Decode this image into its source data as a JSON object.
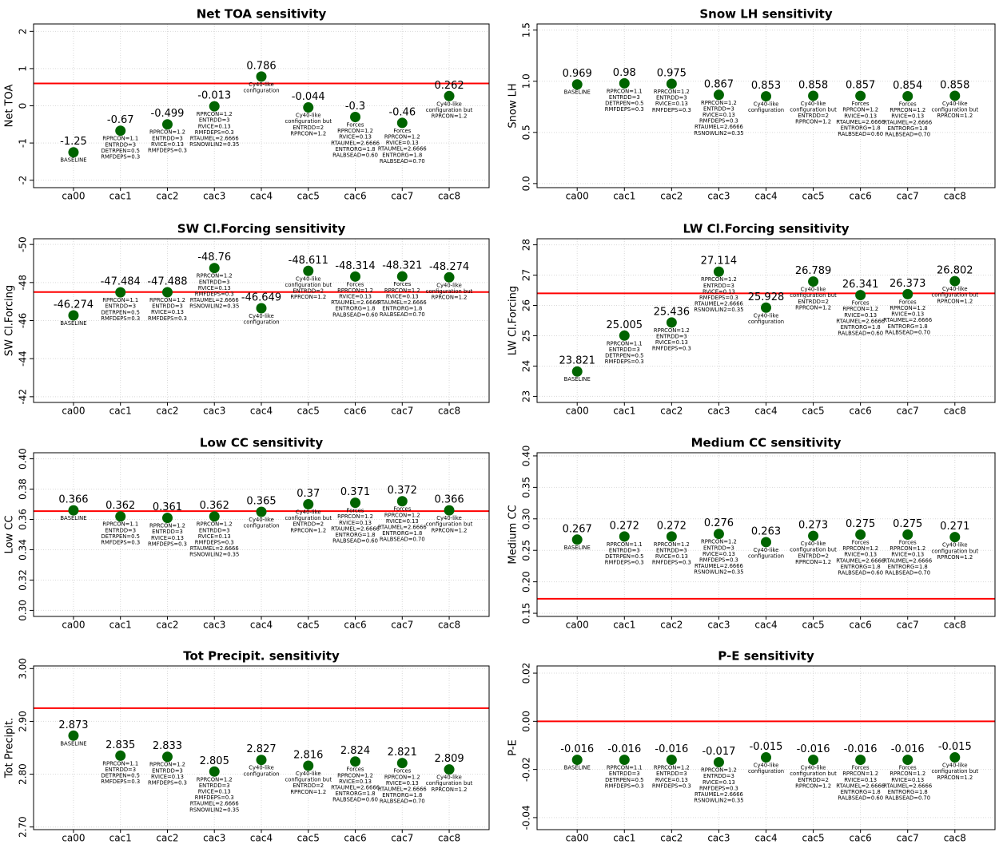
{
  "chart_data": [
    {
      "type": "point",
      "title": "Net TOA sensitivity",
      "y_label": "Net TOA",
      "categories": [
        "ca00",
        "cac1",
        "cac2",
        "cac3",
        "cac4",
        "cac5",
        "cac6",
        "cac7",
        "cac8"
      ],
      "values": [
        -1.25,
        -0.67,
        -0.499,
        -0.013,
        0.786,
        -0.044,
        -0.3,
        -0.46,
        0.262
      ],
      "annotations": [
        [
          "BASELINE"
        ],
        [
          "RPRCON=1.1",
          "ENTRDD=3",
          "DETRPEN=0.5",
          "RMFDEPS=0.3"
        ],
        [
          "RPRCON=1.2",
          "ENTRDD=3",
          "RVICE=0.13",
          "RMFDEPS=0.3"
        ],
        [
          "RPRCON=1.2",
          "ENTRDD=3",
          "RVICE=0.13",
          "RMFDEPS=0.3",
          "RTAUMEL=2.6666",
          "RSNOWLIN2=0.35"
        ],
        [
          "Cy40-like",
          "configuration"
        ],
        [
          "Cy40-like",
          "configuration but",
          "ENTRDD=2",
          "RPRCON=1.2"
        ],
        [
          "Forces",
          "RPRCON=1.2",
          "RVICE=0.13",
          "RTAUMEL=2.6666",
          "ENTRORG=1.8",
          "RALBSEAD=0.60"
        ],
        [
          "Forces",
          "RPRCON=1.2",
          "RVICE=0.13",
          "RTAUMEL=2.6666",
          "ENTRORG=1.8",
          "RALBSEAD=0.70"
        ],
        [
          "Cy40-like",
          "configuration but",
          "RPRCON=1.2"
        ]
      ],
      "ylim": [
        -2.2,
        2.2
      ],
      "yticks": [
        -2,
        -1,
        0,
        1,
        2
      ],
      "grid": true,
      "color": "#006400",
      "reference_line": {
        "value": 0.6,
        "color": "#ff0000"
      }
    },
    {
      "type": "point",
      "title": "Snow LH sensitivity",
      "y_label": "Snow LH",
      "categories": [
        "ca00",
        "cac1",
        "cac2",
        "cac3",
        "cac4",
        "cac5",
        "cac6",
        "cac7",
        "cac8"
      ],
      "values": [
        0.969,
        0.98,
        0.975,
        0.867,
        0.853,
        0.858,
        0.857,
        0.854,
        0.858
      ],
      "annotations": [
        [
          "BASELINE"
        ],
        [
          "RPRCON=1.1",
          "ENTRDD=3",
          "DETRPEN=0.5",
          "RMFDEPS=0.3"
        ],
        [
          "RPRCON=1.2",
          "ENTRDD=3",
          "RVICE=0.13",
          "RMFDEPS=0.3"
        ],
        [
          "RPRCON=1.2",
          "ENTRDD=3",
          "RVICE=0.13",
          "RMFDEPS=0.3",
          "RTAUMEL=2.6666",
          "RSNOWLIN2=0.35"
        ],
        [
          "Cy40-like",
          "configuration"
        ],
        [
          "Cy40-like",
          "configuration but",
          "ENTRDD=2",
          "RPRCON=1.2"
        ],
        [
          "Forces",
          "RPRCON=1.2",
          "RVICE=0.13",
          "RTAUMEL=2.6666",
          "ENTRORG=1.8",
          "RALBSEAD=0.60"
        ],
        [
          "Forces",
          "RPRCON=1.2",
          "RVICE=0.13",
          "RTAUMEL=2.6666",
          "ENTRORG=1.8",
          "RALBSEAD=0.70"
        ],
        [
          "Cy40-like",
          "configuration but",
          "RPRCON=1.2"
        ]
      ],
      "ylim": [
        -0.04,
        1.56
      ],
      "yticks": [
        {
          "value": 0,
          "label": "0.0"
        },
        0.5,
        {
          "value": 1,
          "label": "1.0"
        },
        1.5
      ],
      "grid": true,
      "color": "#006400"
    },
    {
      "type": "point",
      "title": "SW Cl.Forcing sensitivity",
      "y_label": "SW Cl.Forcing",
      "categories": [
        "ca00",
        "cac1",
        "cac2",
        "cac3",
        "cac4",
        "cac5",
        "cac6",
        "cac7",
        "cac8"
      ],
      "values": [
        -46.274,
        -47.484,
        -47.488,
        -48.76,
        -46.649,
        -48.611,
        -48.314,
        -48.321,
        -48.274
      ],
      "annotations": [
        [
          "BASELINE"
        ],
        [
          "RPRCON=1.1",
          "ENTRDD=3",
          "DETRPEN=0.5",
          "RMFDEPS=0.3"
        ],
        [
          "RPRCON=1.2",
          "ENTRDD=3",
          "RVICE=0.13",
          "RMFDEPS=0.3"
        ],
        [
          "RPRCON=1.2",
          "ENTRDD=3",
          "RVICE=0.13",
          "RMFDEPS=0.3",
          "RTAUMEL=2.6666",
          "RSNOWLIN2=0.35"
        ],
        [
          "Cy40-like",
          "configuration"
        ],
        [
          "Cy40-like",
          "configuration but",
          "ENTRDD=2",
          "RPRCON=1.2"
        ],
        [
          "Forces",
          "RPRCON=1.2",
          "RVICE=0.13",
          "RTAUMEL=2.6666",
          "ENTRORG=1.8",
          "RALBSEAD=0.60"
        ],
        [
          "Forces",
          "RPRCON=1.2",
          "RVICE=0.13",
          "RTAUMEL=2.6666",
          "ENTRORG=1.8",
          "RALBSEAD=0.70"
        ],
        [
          "Cy40-like",
          "configuration but",
          "RPRCON=1.2"
        ]
      ],
      "ylim": [
        -41.7,
        -50.3
      ],
      "yticks": [
        -50,
        -48,
        -46,
        -44,
        -42
      ],
      "grid": true,
      "color": "#006400",
      "reference_line": {
        "value": -47.5,
        "color": "#ff0000"
      }
    },
    {
      "type": "point",
      "title": "LW Cl.Forcing sensitivity",
      "y_label": "LW Cl.Forcing",
      "categories": [
        "ca00",
        "cac1",
        "cac2",
        "cac3",
        "cac4",
        "cac5",
        "cac6",
        "cac7",
        "cac8"
      ],
      "values": [
        23.821,
        25.005,
        25.436,
        27.114,
        25.928,
        26.789,
        26.341,
        26.373,
        26.802
      ],
      "annotations": [
        [
          "BASELINE"
        ],
        [
          "RPRCON=1.1",
          "ENTRDD=3",
          "DETRPEN=0.5",
          "RMFDEPS=0.3"
        ],
        [
          "RPRCON=1.2",
          "ENTRDD=3",
          "RVICE=0.13",
          "RMFDEPS=0.3"
        ],
        [
          "RPRCON=1.2",
          "ENTRDD=3",
          "RVICE=0.13",
          "RMFDEPS=0.3",
          "RTAUMEL=2.6666",
          "RSNOWLIN2=0.35"
        ],
        [
          "Cy40-like",
          "configuration"
        ],
        [
          "Cy40-like",
          "configuration but",
          "ENTRDD=2",
          "RPRCON=1.2"
        ],
        [
          "Forces",
          "RPRCON=1.2",
          "RVICE=0.13",
          "RTAUMEL=2.6666",
          "ENTRORG=1.8",
          "RALBSEAD=0.60"
        ],
        [
          "Forces",
          "RPRCON=1.2",
          "RVICE=0.13",
          "RTAUMEL=2.6666",
          "ENTRORG=1.8",
          "RALBSEAD=0.70"
        ],
        [
          "Cy40-like",
          "configuration but",
          "RPRCON=1.2"
        ]
      ],
      "ylim": [
        22.8,
        28.2
      ],
      "yticks": [
        23,
        24,
        25,
        26,
        27,
        28
      ],
      "grid": true,
      "color": "#006400",
      "reference_line": {
        "value": 26.4,
        "color": "#ff0000"
      }
    },
    {
      "type": "point",
      "title": "Low CC sensitivity",
      "y_label": "Low CC",
      "categories": [
        "ca00",
        "cac1",
        "cac2",
        "cac3",
        "cac4",
        "cac5",
        "cac6",
        "cac7",
        "cac8"
      ],
      "values": [
        0.366,
        0.362,
        0.361,
        0.362,
        0.365,
        0.37,
        0.371,
        0.372,
        0.366
      ],
      "annotations": [
        [
          "BASELINE"
        ],
        [
          "RPRCON=1.1",
          "ENTRDD=3",
          "DETRPEN=0.5",
          "RMFDEPS=0.3"
        ],
        [
          "RPRCON=1.2",
          "ENTRDD=3",
          "RVICE=0.13",
          "RMFDEPS=0.3"
        ],
        [
          "RPRCON=1.2",
          "ENTRDD=3",
          "RVICE=0.13",
          "RMFDEPS=0.3",
          "RTAUMEL=2.6666",
          "RSNOWLIN2=0.35"
        ],
        [
          "Cy40-like",
          "configuration"
        ],
        [
          "Cy40-like",
          "configuration but",
          "ENTRDD=2",
          "RPRCON=1.2"
        ],
        [
          "Forces",
          "RPRCON=1.2",
          "RVICE=0.13",
          "RTAUMEL=2.6666",
          "ENTRORG=1.8",
          "RALBSEAD=0.60"
        ],
        [
          "Forces",
          "RPRCON=1.2",
          "RVICE=0.13",
          "RTAUMEL=2.6666",
          "ENTRORG=1.8",
          "RALBSEAD=0.70"
        ],
        [
          "Cy40-like",
          "configuration but",
          "RPRCON=1.2"
        ]
      ],
      "ylim": [
        0.296,
        0.404
      ],
      "yticks": [
        {
          "value": 0.3,
          "label": "0.30"
        },
        0.32,
        0.34,
        0.36,
        0.38,
        {
          "value": 0.4,
          "label": "0.40"
        }
      ],
      "grid": true,
      "color": "#006400",
      "reference_line": {
        "value": 0.3655,
        "color": "#ff0000"
      }
    },
    {
      "type": "point",
      "title": "Medium CC sensitivity",
      "y_label": "Medium CC",
      "categories": [
        "ca00",
        "cac1",
        "cac2",
        "cac3",
        "cac4",
        "cac5",
        "cac6",
        "cac7",
        "cac8"
      ],
      "values": [
        0.267,
        0.272,
        0.272,
        0.276,
        0.263,
        0.273,
        0.275,
        0.275,
        0.271
      ],
      "annotations": [
        [
          "BASELINE"
        ],
        [
          "RPRCON=1.1",
          "ENTRDD=3",
          "DETRPEN=0.5",
          "RMFDEPS=0.3"
        ],
        [
          "RPRCON=1.2",
          "ENTRDD=3",
          "RVICE=0.13",
          "RMFDEPS=0.3"
        ],
        [
          "RPRCON=1.2",
          "ENTRDD=3",
          "RVICE=0.13",
          "RMFDEPS=0.3",
          "RTAUMEL=2.6666",
          "RSNOWLIN2=0.35"
        ],
        [
          "Cy40-like",
          "configuration"
        ],
        [
          "Cy40-like",
          "configuration but",
          "ENTRDD=2",
          "RPRCON=1.2"
        ],
        [
          "Forces",
          "RPRCON=1.2",
          "RVICE=0.13",
          "RTAUMEL=2.6666",
          "ENTRORG=1.8",
          "RALBSEAD=0.60"
        ],
        [
          "Forces",
          "RPRCON=1.2",
          "RVICE=0.13",
          "RTAUMEL=2.6666",
          "ENTRORG=1.8",
          "RALBSEAD=0.70"
        ],
        [
          "Cy40-like",
          "configuration but",
          "RPRCON=1.2"
        ]
      ],
      "ylim": [
        0.145,
        0.405
      ],
      "yticks": [
        0.15,
        {
          "value": 0.2,
          "label": "0.20"
        },
        0.25,
        {
          "value": 0.3,
          "label": "0.30"
        },
        0.35,
        {
          "value": 0.4,
          "label": "0.40"
        }
      ],
      "grid": true,
      "color": "#006400",
      "reference_line": {
        "value": 0.173,
        "color": "#ff0000"
      }
    },
    {
      "type": "point",
      "title": "Tot Precipit. sensitivity",
      "y_label": "Tot Precipit.",
      "categories": [
        "ca00",
        "cac1",
        "cac2",
        "cac3",
        "cac4",
        "cac5",
        "cac6",
        "cac7",
        "cac8"
      ],
      "values": [
        2.873,
        2.835,
        2.833,
        2.805,
        2.827,
        2.816,
        2.824,
        2.821,
        2.809
      ],
      "annotations": [
        [
          "BASELINE"
        ],
        [
          "RPRCON=1.1",
          "ENTRDD=3",
          "DETRPEN=0.5",
          "RMFDEPS=0.3"
        ],
        [
          "RPRCON=1.2",
          "ENTRDD=3",
          "RVICE=0.13",
          "RMFDEPS=0.3"
        ],
        [
          "RPRCON=1.2",
          "ENTRDD=3",
          "RVICE=0.13",
          "RMFDEPS=0.3",
          "RTAUMEL=2.6666",
          "RSNOWLIN2=0.35"
        ],
        [
          "Cy40-like",
          "configuration"
        ],
        [
          "Cy40-like",
          "configuration but",
          "ENTRDD=2",
          "RPRCON=1.2"
        ],
        [
          "Forces",
          "RPRCON=1.2",
          "RVICE=0.13",
          "RTAUMEL=2.6666",
          "ENTRORG=1.8",
          "RALBSEAD=0.60"
        ],
        [
          "Forces",
          "RPRCON=1.2",
          "RVICE=0.13",
          "RTAUMEL=2.6666",
          "ENTRORG=1.8",
          "RALBSEAD=0.70"
        ],
        [
          "Cy40-like",
          "configuration but",
          "RPRCON=1.2"
        ]
      ],
      "ylim": [
        2.695,
        3.005
      ],
      "yticks": [
        {
          "value": 2.7,
          "label": "2.70"
        },
        {
          "value": 2.8,
          "label": "2.80"
        },
        {
          "value": 2.9,
          "label": "2.90"
        },
        {
          "value": 3,
          "label": "3.00"
        }
      ],
      "grid": true,
      "color": "#006400",
      "reference_line": {
        "value": 2.925,
        "color": "#ff0000"
      }
    },
    {
      "type": "point",
      "title": "P-E sensitivity",
      "y_label": "P-E",
      "categories": [
        "ca00",
        "cac1",
        "cac2",
        "cac3",
        "cac4",
        "cac5",
        "cac6",
        "cac7",
        "cac8"
      ],
      "values": [
        -0.016,
        -0.016,
        -0.016,
        -0.017,
        -0.015,
        -0.016,
        -0.016,
        -0.016,
        -0.015
      ],
      "annotations": [
        [
          "BASELINE"
        ],
        [
          "RPRCON=1.1",
          "ENTRDD=3",
          "DETRPEN=0.5",
          "RMFDEPS=0.3"
        ],
        [
          "RPRCON=1.2",
          "ENTRDD=3",
          "RVICE=0.13",
          "RMFDEPS=0.3"
        ],
        [
          "RPRCON=1.2",
          "ENTRDD=3",
          "RVICE=0.13",
          "RMFDEPS=0.3",
          "RTAUMEL=2.6666",
          "RSNOWLIN2=0.35"
        ],
        [
          "Cy40-like",
          "configuration"
        ],
        [
          "Cy40-like",
          "configuration but",
          "ENTRDD=2",
          "RPRCON=1.2"
        ],
        [
          "Forces",
          "RPRCON=1.2",
          "RVICE=0.13",
          "RTAUMEL=2.6666",
          "ENTRORG=1.8",
          "RALBSEAD=0.60"
        ],
        [
          "Forces",
          "RPRCON=1.2",
          "RVICE=0.13",
          "RTAUMEL=2.6666",
          "ENTRORG=1.8",
          "RALBSEAD=0.70"
        ],
        [
          "Cy40-like",
          "configuration but",
          "RPRCON=1.2"
        ]
      ],
      "ylim": [
        -0.045,
        0.023
      ],
      "yticks": [
        -0.04,
        -0.02,
        {
          "value": 0,
          "label": "0.00"
        },
        0.02
      ],
      "grid": true,
      "color": "#006400",
      "reference_line": {
        "value": 0,
        "color": "#ff0000"
      }
    }
  ]
}
